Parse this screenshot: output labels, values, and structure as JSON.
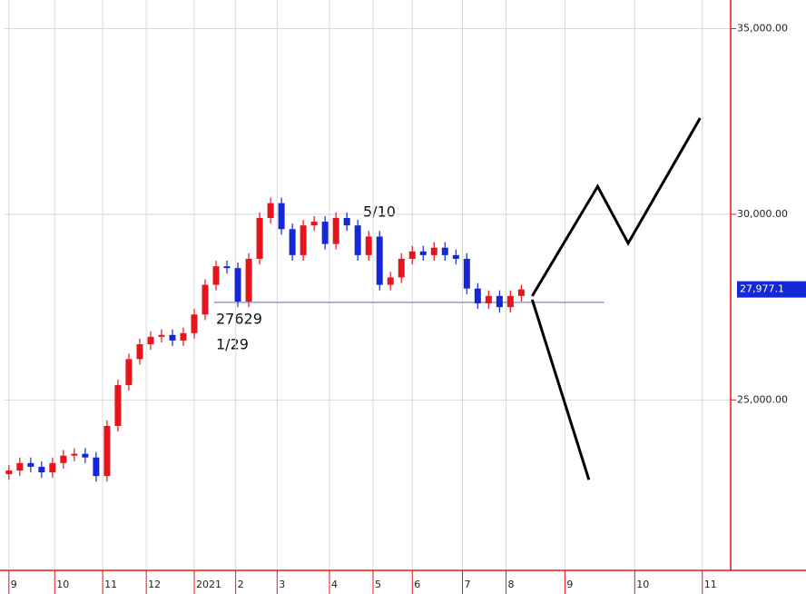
{
  "chart_data": {
    "type": "candlestick",
    "xlim": [
      -2,
      331
    ],
    "ylim": [
      20410,
      35770
    ],
    "xticks": [
      {
        "value": 0,
        "label": "9"
      },
      {
        "value": 21,
        "label": "10"
      },
      {
        "value": 43,
        "label": "11"
      },
      {
        "value": 63,
        "label": "12"
      },
      {
        "value": 85,
        "label": "2021"
      },
      {
        "value": 104,
        "label": "2"
      },
      {
        "value": 123,
        "label": "3"
      },
      {
        "value": 147,
        "label": "4"
      },
      {
        "value": 167,
        "label": "5"
      },
      {
        "value": 185,
        "label": "6"
      },
      {
        "value": 208,
        "label": "7"
      },
      {
        "value": 228,
        "label": "8"
      },
      {
        "value": 255,
        "label": "9"
      },
      {
        "value": 287,
        "label": "10"
      },
      {
        "value": 318,
        "label": "11"
      }
    ],
    "yticks": [
      {
        "value": 25000,
        "label": "25,000.00"
      },
      {
        "value": 30000,
        "label": "30,000.00"
      },
      {
        "value": 35000,
        "label": "35,000.00"
      }
    ],
    "grid": true,
    "up_color": "#e8141c",
    "down_color": "#1428d8",
    "x": [
      0,
      5,
      10,
      15,
      20,
      25,
      30,
      35,
      40,
      45,
      50,
      55,
      60,
      65,
      70,
      75,
      80,
      85,
      90,
      95,
      100,
      105,
      110,
      115,
      120,
      125,
      130,
      135,
      140,
      145,
      150,
      155,
      160,
      165,
      170,
      175,
      180,
      185,
      190,
      195,
      200,
      205,
      210,
      215,
      220,
      225,
      230,
      235
    ],
    "open": [
      23000,
      23100,
      23300,
      23200,
      23050,
      23300,
      23500,
      23550,
      23450,
      22950,
      24300,
      25400,
      26100,
      26500,
      26700,
      26750,
      26600,
      26800,
      27300,
      28100,
      28600,
      28550,
      27650,
      28800,
      29900,
      30300,
      29600,
      28900,
      29700,
      29800,
      29200,
      29900,
      29700,
      28900,
      29400,
      28100,
      28300,
      28800,
      29000,
      28900,
      29100,
      28900,
      28800,
      28000,
      27600,
      27800,
      27500,
      27800
    ],
    "high": [
      23250,
      23450,
      23450,
      23350,
      23450,
      23650,
      23700,
      23700,
      23600,
      24450,
      25550,
      26250,
      26650,
      26850,
      26900,
      26900,
      26950,
      27450,
      28250,
      28750,
      28750,
      28700,
      28950,
      30050,
      30450,
      30450,
      29750,
      29850,
      29950,
      29950,
      30050,
      30050,
      29850,
      29550,
      29550,
      28450,
      28950,
      29150,
      29150,
      29250,
      29250,
      29050,
      28950,
      28150,
      27950,
      27950,
      27950,
      28100
    ],
    "low": [
      22850,
      22950,
      23050,
      22900,
      22900,
      23150,
      23350,
      23300,
      22800,
      22800,
      24150,
      25250,
      25950,
      26350,
      26550,
      26450,
      26450,
      26650,
      27150,
      27950,
      28400,
      27500,
      27500,
      28650,
      29750,
      29450,
      28750,
      28750,
      29550,
      29050,
      29050,
      29550,
      28750,
      28750,
      27950,
      27950,
      28150,
      28650,
      28750,
      28750,
      28750,
      28650,
      27850,
      27450,
      27450,
      27350,
      27350,
      27650
    ],
    "close": [
      23100,
      23300,
      23200,
      23050,
      23300,
      23500,
      23550,
      23450,
      22950,
      24300,
      25400,
      26100,
      26500,
      26700,
      26750,
      26600,
      26800,
      27300,
      28100,
      28600,
      28550,
      27650,
      28800,
      29900,
      30300,
      29600,
      28900,
      29700,
      29800,
      29200,
      29900,
      29700,
      28900,
      29400,
      28100,
      28300,
      28800,
      29000,
      28900,
      29100,
      28900,
      28800,
      28000,
      27600,
      27800,
      27500,
      27800,
      27977.1
    ],
    "last_price": {
      "value": 27977.1,
      "label": "27,977.1"
    },
    "support": {
      "value": 27629,
      "x": [
        94,
        273
      ],
      "date": "1/29"
    },
    "peak_label": "5/10",
    "forecast_up": {
      "x": [
        240,
        270,
        284,
        317
      ],
      "y": [
        27800,
        30750,
        29220,
        32590
      ]
    },
    "forecast_down": {
      "x": [
        240,
        266
      ],
      "y": [
        27700,
        22850
      ]
    }
  }
}
